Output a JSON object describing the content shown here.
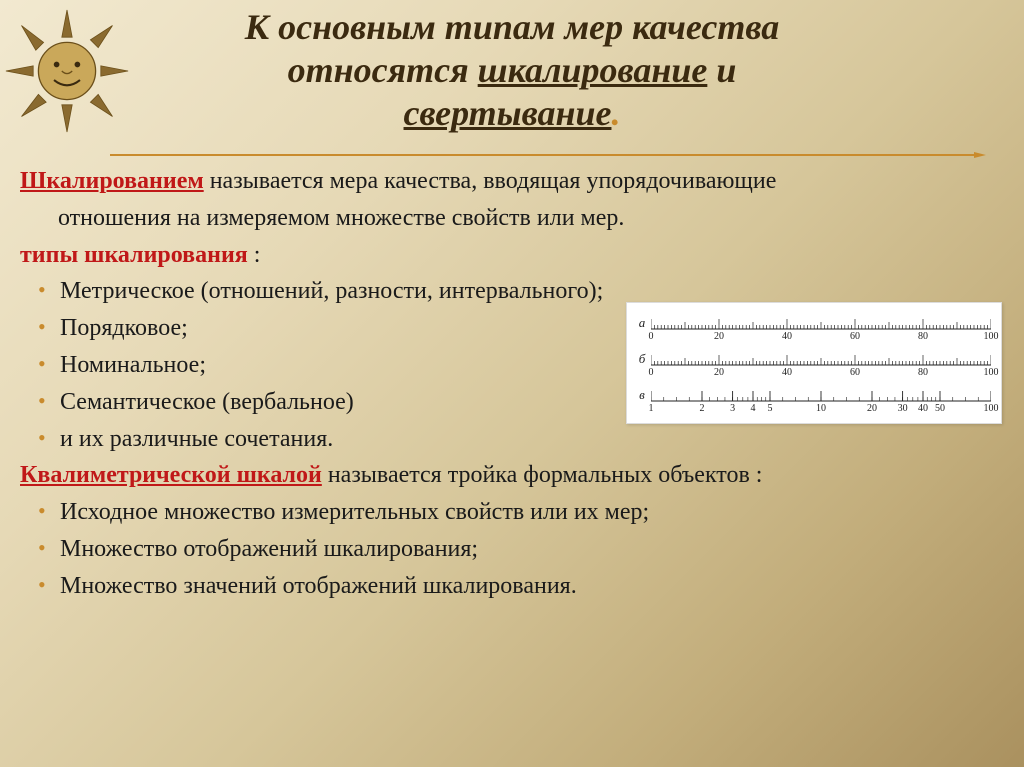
{
  "title": {
    "line1": "К основным типам мер качества",
    "line2_pre": "относятся ",
    "line2_u1": "шкалирование",
    "line2_mid": " и",
    "line3_u2": "свертывание",
    "period": ".",
    "color": "#3b2a10",
    "fontsize": 36
  },
  "definition": {
    "term": "Шкалированием",
    "text_line1": " называется мера качества, вводящая упорядочивающие",
    "text_line2": "отношения на измеряемом множестве свойств или мер."
  },
  "types_heading": "типы шкалирования",
  "types_heading_suffix": " :",
  "types": [
    "Метрическое (отношений, разности, интервального);",
    "Порядковое;",
    "Номинальное;",
    "Семантическое (вербальное)",
    "и их различные сочетания."
  ],
  "qscale": {
    "term": "Квалиметрической шкалой",
    "rest": " называется тройка формальных объектов :"
  },
  "qscale_items": [
    "Исходное множество измерительных свойств или их мер;",
    "Множество отображений шкалирования;",
    "Множество значений отображений шкалирования."
  ],
  "ruler_figure": {
    "background_color": "#ffffff",
    "tick_color": "#222222",
    "label_fontsize": 10,
    "rows": [
      {
        "label": "а",
        "type": "linear",
        "range": [
          0,
          100
        ],
        "major_step": 20,
        "tick_labels": [
          "0",
          "20",
          "40",
          "60",
          "80",
          "100"
        ]
      },
      {
        "label": "б",
        "type": "linear",
        "range": [
          0,
          100
        ],
        "major_step": 20,
        "tick_labels": [
          "0",
          "20",
          "40",
          "60",
          "80",
          "100"
        ]
      },
      {
        "label": "в",
        "type": "log",
        "tick_labels": [
          "1",
          "2",
          "3",
          "4",
          "5",
          "10",
          "20",
          "30",
          "40",
          "50",
          "100"
        ],
        "tick_positions_pct": [
          0,
          15,
          24,
          30,
          35,
          50,
          65,
          74,
          80,
          85,
          100
        ]
      }
    ]
  },
  "colors": {
    "accent": "#c98b2d",
    "red": "#c01818",
    "text": "#1a1a1a",
    "bg_gradient_from": "#f2e9d0",
    "bg_gradient_to": "#aa915f"
  },
  "decorative": {
    "sun_icon": "sun-face-icon"
  }
}
